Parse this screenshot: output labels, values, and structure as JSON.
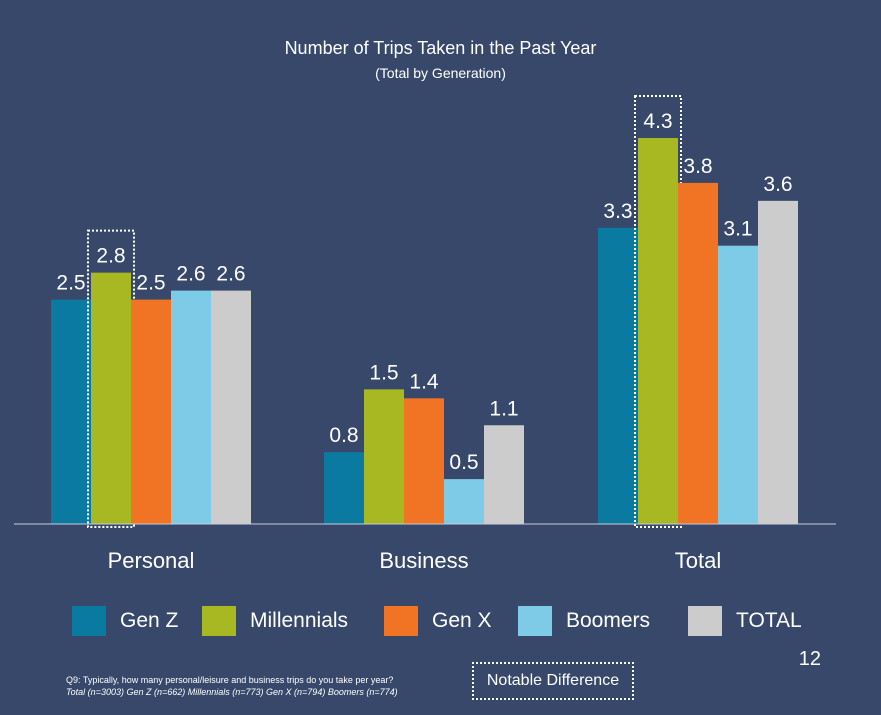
{
  "chart_data": {
    "type": "bar",
    "title": "Number of Trips Taken in the Past Year",
    "subtitle": "(Total by Generation)",
    "categories": [
      "Personal",
      "Business",
      "Total"
    ],
    "series": [
      {
        "name": "Gen Z",
        "color": "#0a7aa0",
        "values": [
          2.5,
          0.8,
          3.3
        ],
        "labels": [
          "2.5",
          "0.8",
          "3.3"
        ]
      },
      {
        "name": "Millennials",
        "color": "#a8b823",
        "values": [
          2.8,
          1.5,
          4.3
        ],
        "labels": [
          "2.8",
          "1.5",
          "4.3"
        ]
      },
      {
        "name": "Gen X",
        "color": "#f07424",
        "values": [
          2.5,
          1.4,
          3.8
        ],
        "labels": [
          "2.5",
          "1.4",
          "3.8"
        ]
      },
      {
        "name": "Boomers",
        "color": "#7ecbe8",
        "values": [
          2.6,
          0.5,
          3.1
        ],
        "labels": [
          "2.6",
          "0.5",
          "3.1"
        ]
      },
      {
        "name": "TOTAL",
        "color": "#cccccc",
        "values": [
          2.6,
          1.1,
          3.6
        ],
        "labels": [
          "2.6",
          "1.1",
          "3.6"
        ]
      }
    ],
    "ylim": [
      0,
      4.3
    ],
    "grid": false,
    "legend_position": "bottom",
    "highlighted": [
      {
        "series": "Millennials",
        "category": "Personal"
      },
      {
        "series": "Millennials",
        "category": "Total"
      }
    ]
  },
  "footnote": {
    "question": "Q9: Typically, how many personal/leisure and business trips do you take per year?",
    "sample": "Total (n=3003) Gen Z (n=662) Millennials (n=773) Gen X (n=794) Boomers (n=774)"
  },
  "notable_label": "Notable Difference",
  "page_number": "12"
}
